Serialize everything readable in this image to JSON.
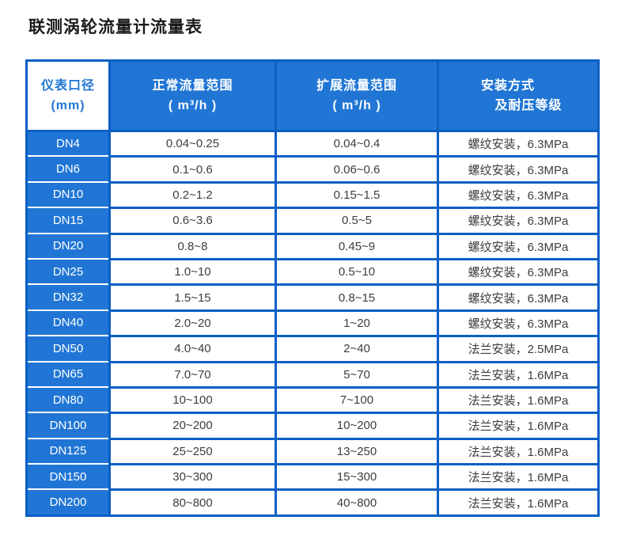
{
  "title": "联测涡轮流量计流量表",
  "colors": {
    "fill_blue": "#2176d5",
    "border_blue": "#0b5fc5",
    "header_text": "#ffffff",
    "first_header_bg": "#ffffff",
    "first_header_text": "#2176d5",
    "cell_text": "#3d3d3d",
    "title_text": "#1a1a1a"
  },
  "table": {
    "columns": [
      {
        "label": "仪表口径",
        "sublabel": "(mm)"
      },
      {
        "label": "正常流量范围",
        "sublabel": "( m³/h )"
      },
      {
        "label": "扩展流量范围",
        "sublabel": "( m³/h )"
      },
      {
        "label": "安装方式",
        "sublabel": "及耐压等级"
      }
    ],
    "rows": [
      {
        "dn": "DN4",
        "normal": "0.04~0.25",
        "extended": "0.04~0.4",
        "install": "螺纹安装，6.3MPa"
      },
      {
        "dn": "DN6",
        "normal": "0.1~0.6",
        "extended": "0.06~0.6",
        "install": "螺纹安装，6.3MPa"
      },
      {
        "dn": "DN10",
        "normal": "0.2~1.2",
        "extended": "0.15~1.5",
        "install": "螺纹安装，6.3MPa"
      },
      {
        "dn": "DN15",
        "normal": "0.6~3.6",
        "extended": "0.5~5",
        "install": "螺纹安装，6.3MPa"
      },
      {
        "dn": "DN20",
        "normal": "0.8~8",
        "extended": "0.45~9",
        "install": "螺纹安装，6.3MPa"
      },
      {
        "dn": "DN25",
        "normal": "1.0~10",
        "extended": "0.5~10",
        "install": "螺纹安装，6.3MPa"
      },
      {
        "dn": "DN32",
        "normal": "1.5~15",
        "extended": "0.8~15",
        "install": "螺纹安装，6.3MPa"
      },
      {
        "dn": "DN40",
        "normal": "2.0~20",
        "extended": "1~20",
        "install": "螺纹安装，6.3MPa"
      },
      {
        "dn": "DN50",
        "normal": "4.0~40",
        "extended": "2~40",
        "install": "法兰安装，2.5MPa"
      },
      {
        "dn": "DN65",
        "normal": "7.0~70",
        "extended": "5~70",
        "install": "法兰安装，1.6MPa"
      },
      {
        "dn": "DN80",
        "normal": "10~100",
        "extended": "7~100",
        "install": "法兰安装，1.6MPa"
      },
      {
        "dn": "DN100",
        "normal": "20~200",
        "extended": "10~200",
        "install": "法兰安装，1.6MPa"
      },
      {
        "dn": "DN125",
        "normal": "25~250",
        "extended": "13~250",
        "install": "法兰安装，1.6MPa"
      },
      {
        "dn": "DN150",
        "normal": "30~300",
        "extended": "15~300",
        "install": "法兰安装，1.6MPa"
      },
      {
        "dn": "DN200",
        "normal": "80~800",
        "extended": "40~800",
        "install": "法兰安装，1.6MPa"
      }
    ]
  }
}
